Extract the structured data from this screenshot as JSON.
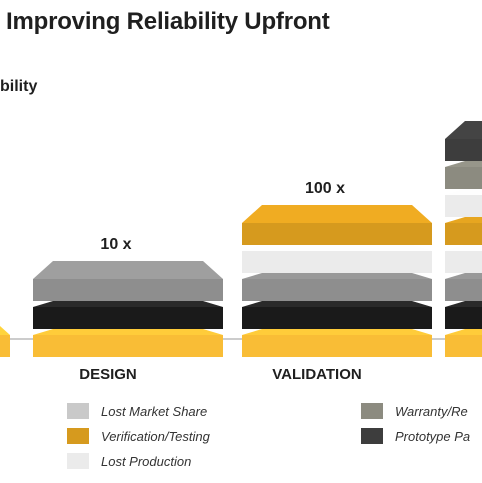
{
  "title": "Improving Reliability Upfront",
  "subtitle": "bility",
  "colors": {
    "lost_market_share": "#c9c9c9",
    "verification_testing": "#d69a1e",
    "lost_production": "#ebebeb",
    "warranty": "#8c8b80",
    "prototype": "#3d3d3d",
    "yellow": "#f9bd36",
    "grey_mid": "#8e8e8e",
    "black": "#1a1a1a"
  },
  "chart_data": {
    "type": "bar",
    "categories": [
      "",
      "DESIGN",
      "VALIDATION",
      ""
    ],
    "multipliers": [
      "",
      "10 x",
      "100 x",
      ""
    ],
    "stacks": [
      [
        "yellow"
      ],
      [
        "yellow",
        "black",
        "grey_mid"
      ],
      [
        "yellow",
        "black",
        "grey_mid",
        "lost_production",
        "verification_testing"
      ],
      [
        "yellow",
        "black",
        "grey_mid",
        "lost_production",
        "verification_testing",
        "lost_production",
        "warranty",
        "prototype"
      ]
    ]
  },
  "legend": [
    {
      "label": "Lost Market Share",
      "color_key": "lost_market_share"
    },
    {
      "label": "Verification/Testing",
      "color_key": "verification_testing"
    },
    {
      "label": "Lost Production",
      "color_key": "lost_production"
    },
    {
      "label": "Warranty/Re",
      "color_key": "warranty"
    },
    {
      "label": "Prototype Pa",
      "color_key": "prototype"
    }
  ]
}
